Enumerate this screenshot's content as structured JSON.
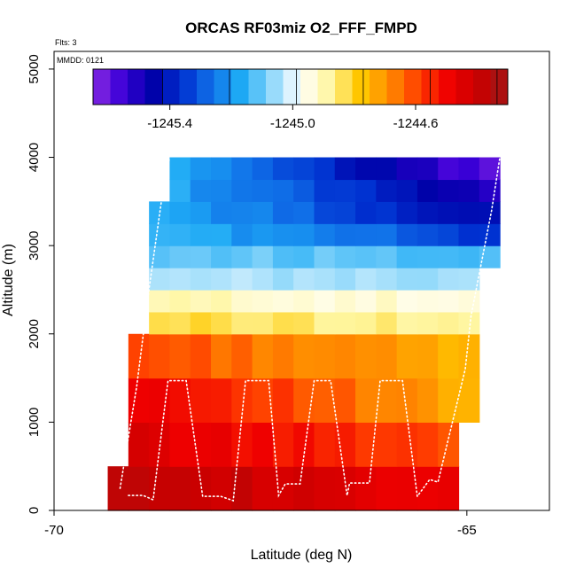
{
  "chart_data": {
    "type": "heatmap",
    "title": "ORCAS RF03miz O2_FFF_FMPD",
    "subtitle_flights": "Flts: 3",
    "date_label": "MMDD: 0121",
    "xlabel": "Latitude (deg N)",
    "ylabel": "Altitude (m)",
    "xlim": [
      -70,
      -64
    ],
    "ylim": [
      0,
      5200
    ],
    "x_ticks": [
      -70,
      -65
    ],
    "x_tick_labels": [
      "-70",
      "-65"
    ],
    "y_ticks": [
      0,
      1000,
      2000,
      3000,
      4000,
      5000
    ],
    "y_tick_labels": [
      "0",
      "1000",
      "2000",
      "3000",
      "4000",
      "5000"
    ],
    "colorbar": {
      "min": -1245.65,
      "max": -1244.3,
      "ticks": [
        -1245.4,
        -1245.0,
        -1244.6
      ],
      "tick_labels": [
        "-1245.4",
        "-1245.0",
        "-1244.6"
      ],
      "colors": [
        "#8a2be2",
        "#3b00d8",
        "#0000a8",
        "#0030d0",
        "#1070e8",
        "#1eaaf5",
        "#8ad6fa",
        "#ffffff",
        "#fff6a0",
        "#ffc800",
        "#ff8c00",
        "#ff3c00",
        "#ef0000",
        "#c80000",
        "#a01818"
      ]
    },
    "cell_width_deg": 0.25,
    "rows": [
      {
        "alt_low": 0,
        "alt_high": 500,
        "x_start": -69.35,
        "x_end": -65.1,
        "value_west": -1244.35,
        "value_east": -1244.5
      },
      {
        "alt_low": 500,
        "alt_high": 1000,
        "x_start": -69.1,
        "x_end": -65.1,
        "value_west": -1244.45,
        "value_east": -1244.6
      },
      {
        "alt_low": 1000,
        "alt_high": 1500,
        "x_start": -69.1,
        "x_end": -64.85,
        "value_west": -1244.47,
        "value_east": -1244.75
      },
      {
        "alt_low": 1500,
        "alt_high": 2000,
        "x_start": -69.1,
        "x_end": -64.85,
        "value_west": -1244.6,
        "value_east": -1244.75
      },
      {
        "alt_low": 2000,
        "alt_high": 2250,
        "x_start": -68.85,
        "x_end": -64.85,
        "value_west": -1244.82,
        "value_east": -1244.88
      },
      {
        "alt_low": 2250,
        "alt_high": 2500,
        "x_start": -68.85,
        "x_end": -64.85,
        "value_west": -1244.9,
        "value_east": -1244.95
      },
      {
        "alt_low": 2500,
        "alt_high": 2750,
        "x_start": -68.85,
        "x_end": -64.85,
        "value_west": -1245.05,
        "value_east": -1245.05
      },
      {
        "alt_low": 2750,
        "alt_high": 3000,
        "x_start": -68.85,
        "x_end": -64.6,
        "value_west": -1245.1,
        "value_east": -1245.12
      },
      {
        "alt_low": 3000,
        "alt_high": 3250,
        "x_start": -68.85,
        "x_end": -64.6,
        "value_west": -1245.14,
        "value_east": -1245.35
      },
      {
        "alt_low": 3250,
        "alt_high": 3500,
        "x_start": -68.85,
        "x_end": -64.6,
        "value_west": -1245.16,
        "value_east": -1245.45
      },
      {
        "alt_low": 3500,
        "alt_high": 3750,
        "x_start": -68.6,
        "x_end": -64.6,
        "value_west": -1245.18,
        "value_east": -1245.5
      },
      {
        "alt_low": 3750,
        "alt_high": 4000,
        "x_start": -68.6,
        "x_end": -64.6,
        "value_west": -1245.18,
        "value_east": -1245.6
      }
    ],
    "flight_track": [
      [
        -69.1,
        170
      ],
      [
        -68.92,
        170
      ],
      [
        -68.8,
        120
      ],
      [
        -68.62,
        1470
      ],
      [
        -68.4,
        1470
      ],
      [
        -68.2,
        160
      ],
      [
        -67.98,
        160
      ],
      [
        -67.83,
        110
      ],
      [
        -67.68,
        1470
      ],
      [
        -67.4,
        1470
      ],
      [
        -67.28,
        170
      ],
      [
        -67.2,
        300
      ],
      [
        -67.02,
        300
      ],
      [
        -66.85,
        1470
      ],
      [
        -66.65,
        1470
      ],
      [
        -66.45,
        170
      ],
      [
        -66.42,
        310
      ],
      [
        -66.18,
        310
      ],
      [
        -66.05,
        1470
      ],
      [
        -65.78,
        1470
      ],
      [
        -65.6,
        160
      ],
      [
        -65.45,
        350
      ],
      [
        -65.35,
        320
      ],
      [
        -65.02,
        1600
      ],
      [
        -64.95,
        2200
      ],
      [
        -64.7,
        3400
      ],
      [
        -64.6,
        4000
      ]
    ],
    "flight_track_climb": [
      [
        -69.2,
        250
      ],
      [
        -69.0,
        1400
      ],
      [
        -68.85,
        2500
      ],
      [
        -68.7,
        3500
      ],
      [
        -68.6,
        4000
      ]
    ]
  }
}
